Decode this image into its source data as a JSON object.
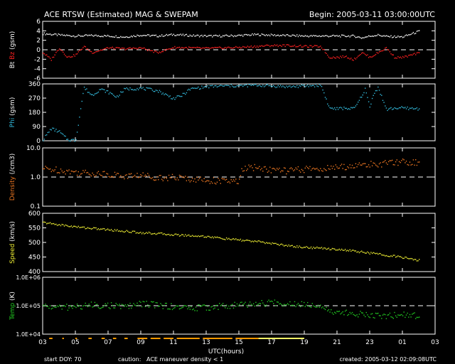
{
  "header": {
    "title": "ACE RTSW (Estimated) MAG & SWEPAM",
    "begin": "Begin: 2005-03-11 03:00:00UTC"
  },
  "footer": {
    "start_doy": "start DOY:  70",
    "caution_label": "caution:",
    "caution_maneuver": "ACE maneuver",
    "caution_density": "density < 1",
    "created": "created: 2005-03-12 02:09:08UTC"
  },
  "colors": {
    "background": "#000000",
    "bt": "#ffffff",
    "bz": "#ff2020",
    "phi": "#33bbdd",
    "density": "#ee7722",
    "speed": "#eeee33",
    "temp": "#22cc22",
    "maneuver": "#ff9900",
    "low_density": "#ffff66"
  },
  "chart_data": [
    {
      "type": "line",
      "title": "ACE RTSW (Estimated) MAG & SWEPAM",
      "ylabel_parts": [
        "Bt",
        "Bz",
        "(gsm)"
      ],
      "ylim": [
        -6,
        6
      ],
      "yticks": [
        "6",
        "4",
        "2",
        "0",
        "-2",
        "-4",
        "-6"
      ],
      "yticks_vals": [
        6,
        4,
        2,
        0,
        -2,
        -4,
        -6
      ],
      "reference_line": 0,
      "series": [
        {
          "name": "Bt",
          "color_key": "bt",
          "x": [
            3,
            4,
            5,
            6,
            7,
            8,
            9,
            10,
            11,
            12,
            13,
            14,
            15,
            16,
            17,
            18,
            19,
            20,
            21,
            22,
            22.5,
            23,
            23.5,
            24,
            25,
            26
          ],
          "y": [
            3.5,
            3.2,
            3.0,
            3.1,
            3.0,
            2.8,
            3.2,
            3.0,
            3.3,
            3.1,
            3.0,
            3.0,
            3.1,
            3.3,
            3.2,
            3.1,
            3.0,
            3.0,
            3.0,
            3.0,
            2.6,
            3.0,
            3.2,
            2.9,
            2.8,
            4.0
          ]
        },
        {
          "name": "Bz",
          "color_key": "bz",
          "x": [
            3,
            3.5,
            4,
            4.5,
            5,
            5.5,
            6,
            7,
            8,
            9,
            10,
            11,
            12,
            13,
            14,
            15,
            16,
            17,
            18,
            19,
            20,
            20.5,
            21,
            21.5,
            22,
            22.5,
            23,
            23.5,
            24,
            24.5,
            25,
            26
          ],
          "y": [
            -0.5,
            -2.0,
            0.5,
            -1.5,
            -1.0,
            0.8,
            -0.5,
            0.5,
            0.3,
            0.5,
            -0.5,
            0.6,
            0.5,
            0.4,
            0.5,
            0.6,
            0.8,
            1.0,
            1.0,
            0.8,
            0.8,
            -1.5,
            -1.5,
            -1.3,
            -2.0,
            -0.5,
            -1.5,
            -0.5,
            0.5,
            -1.5,
            -1.5,
            -0.6
          ]
        }
      ]
    },
    {
      "type": "scatter",
      "ylabel_parts": [
        "Phi",
        "(gsm)"
      ],
      "ylim": [
        0,
        360
      ],
      "yticks": [
        "360",
        "270",
        "180",
        "90",
        "0"
      ],
      "yticks_vals": [
        360,
        270,
        180,
        90,
        0
      ],
      "series": [
        {
          "name": "Phi",
          "color_key": "phi",
          "x": [
            3,
            3.5,
            4,
            4.5,
            5,
            5.5,
            6,
            6.5,
            7,
            7.5,
            8,
            9,
            10,
            11,
            11.5,
            12,
            13,
            14,
            15,
            16,
            17,
            18,
            19,
            20,
            20.2,
            20.5,
            21,
            21.5,
            22,
            22.3,
            22.7,
            23,
            23.2,
            23.5,
            24,
            24.5,
            25,
            26
          ],
          "y": [
            10,
            80,
            60,
            10,
            5,
            340,
            290,
            330,
            310,
            280,
            330,
            335,
            320,
            270,
            290,
            330,
            345,
            350,
            350,
            355,
            350,
            345,
            350,
            355,
            300,
            210,
            205,
            210,
            205,
            250,
            330,
            210,
            300,
            340,
            200,
            210,
            210,
            205
          ]
        }
      ]
    },
    {
      "type": "line",
      "ylabel_parts": [
        "Density",
        "(/cm3)"
      ],
      "yscale": "log",
      "ylim": [
        0.1,
        10
      ],
      "yticks": [
        "10.0",
        "1.0",
        "0.1"
      ],
      "yticks_vals": [
        10,
        1,
        0.1
      ],
      "reference_line": 1,
      "series": [
        {
          "name": "Density",
          "color_key": "density",
          "x": [
            3,
            4,
            5,
            6,
            7,
            8,
            9,
            10,
            11,
            12,
            13,
            14,
            15,
            15.2,
            16,
            17,
            18,
            19,
            20,
            21,
            22,
            23,
            24,
            25,
            26
          ],
          "y": [
            2.0,
            1.8,
            1.5,
            1.4,
            1.3,
            1.1,
            1.2,
            1.0,
            1.0,
            0.9,
            0.8,
            0.75,
            0.7,
            2.0,
            2.2,
            1.8,
            1.7,
            1.9,
            2.0,
            2.2,
            2.5,
            2.8,
            3.0,
            3.5,
            3.2
          ]
        }
      ]
    },
    {
      "type": "scatter",
      "ylabel_parts": [
        "Speed",
        "(km/s)"
      ],
      "ylim": [
        400,
        600
      ],
      "yticks": [
        "600",
        "550",
        "500",
        "450",
        "400"
      ],
      "yticks_vals": [
        600,
        550,
        500,
        450,
        400
      ],
      "series": [
        {
          "name": "Speed",
          "color_key": "speed",
          "x": [
            3,
            4,
            5,
            6,
            7,
            8,
            9,
            10,
            11,
            12,
            13,
            14,
            15,
            16,
            17,
            18,
            19,
            20,
            21,
            22,
            23,
            24,
            25,
            26
          ],
          "y": [
            570,
            562,
            555,
            550,
            545,
            540,
            535,
            532,
            528,
            525,
            522,
            515,
            510,
            505,
            498,
            490,
            485,
            482,
            478,
            472,
            465,
            458,
            450,
            440
          ]
        }
      ]
    },
    {
      "type": "line",
      "ylabel_parts": [
        "Temp",
        "(K)"
      ],
      "yscale": "log",
      "ylim": [
        10000,
        1000000
      ],
      "yticks": [
        "1.0E+06",
        "1.0E+05",
        "1.0E+04"
      ],
      "yticks_vals": [
        1000000,
        100000,
        10000
      ],
      "reference_line": 100000,
      "series": [
        {
          "name": "Temp",
          "color_key": "temp",
          "x": [
            3,
            4,
            5,
            6,
            7,
            8,
            9,
            10,
            11,
            12,
            13,
            14,
            15,
            16,
            17,
            18,
            19,
            20,
            20.5,
            21,
            22,
            23,
            24,
            25,
            26
          ],
          "y": [
            100000,
            90000,
            95000,
            110000,
            105000,
            95000,
            120000,
            110000,
            95000,
            85000,
            90000,
            100000,
            110000,
            120000,
            130000,
            125000,
            120000,
            110000,
            70000,
            60000,
            55000,
            50000,
            45000,
            50000,
            45000
          ]
        }
      ]
    }
  ],
  "xaxis": {
    "label": "UTC(hours)",
    "range": [
      3,
      27
    ],
    "ticks": [
      "03",
      "05",
      "07",
      "09",
      "11",
      "13",
      "15",
      "17",
      "19",
      "21",
      "23",
      "01",
      "03"
    ],
    "tick_vals": [
      3,
      5,
      7,
      9,
      11,
      13,
      15,
      17,
      19,
      21,
      23,
      25,
      27
    ]
  },
  "flags": {
    "maneuver": [
      [
        3.4,
        3.6
      ],
      [
        4.2,
        4.3
      ],
      [
        5.0,
        5.1
      ],
      [
        5.8,
        6.0
      ],
      [
        6.6,
        6.8
      ],
      [
        7.3,
        7.5
      ],
      [
        8.0,
        8.2
      ],
      [
        8.8,
        9.4
      ],
      [
        9.6,
        10.2
      ],
      [
        10.4,
        11.0
      ],
      [
        11.2,
        12.6
      ],
      [
        12.8,
        14.6
      ],
      [
        14.8,
        16.2
      ]
    ],
    "low_density": [
      [
        16.2,
        19.0
      ]
    ]
  }
}
